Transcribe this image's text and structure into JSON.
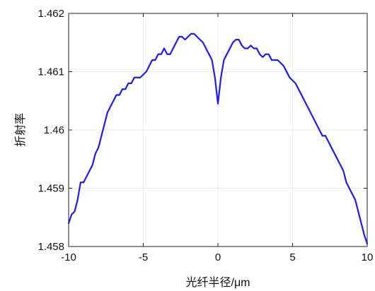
{
  "chart_data": {
    "type": "line",
    "title": "",
    "xlabel": "光纤半径/μm",
    "ylabel": "折射率",
    "xlim": [
      -10,
      10
    ],
    "ylim": [
      1.458,
      1.462
    ],
    "xticks": [
      -10,
      -5,
      0,
      5,
      10
    ],
    "xtick_labels": [
      "-10",
      "-5",
      "0",
      "5",
      "10"
    ],
    "yticks": [
      1.458,
      1.459,
      1.46,
      1.461,
      1.462
    ],
    "ytick_labels": [
      "1.458",
      "1.459",
      "1.46",
      "1.461",
      "1.462"
    ],
    "grid": true,
    "series": [
      {
        "color": "#1a1aff",
        "x": [
          -10,
          -9.8,
          -9.6,
          -9.4,
          -9.2,
          -9.0,
          -8.8,
          -8.6,
          -8.4,
          -8.2,
          -8.0,
          -7.8,
          -7.6,
          -7.4,
          -7.2,
          -7.0,
          -6.8,
          -6.6,
          -6.4,
          -6.2,
          -6.0,
          -5.8,
          -5.6,
          -5.4,
          -5.2,
          -5.0,
          -4.8,
          -4.6,
          -4.4,
          -4.2,
          -4.0,
          -3.8,
          -3.6,
          -3.4,
          -3.2,
          -3.0,
          -2.8,
          -2.6,
          -2.4,
          -2.2,
          -2.0,
          -1.8,
          -1.6,
          -1.4,
          -1.2,
          -1.0,
          -0.8,
          -0.6,
          -0.4,
          -0.2,
          0.0,
          0.2,
          0.4,
          0.6,
          0.8,
          1.0,
          1.2,
          1.4,
          1.6,
          1.8,
          2.0,
          2.2,
          2.4,
          2.6,
          2.8,
          3.0,
          3.2,
          3.4,
          3.6,
          3.8,
          4.0,
          4.2,
          4.4,
          4.6,
          4.8,
          5.0,
          5.2,
          5.4,
          5.6,
          5.8,
          6.0,
          6.2,
          6.4,
          6.6,
          6.8,
          7.0,
          7.2,
          7.4,
          7.6,
          7.8,
          8.0,
          8.2,
          8.4,
          8.6,
          8.8,
          9.0,
          9.2,
          9.4,
          9.6,
          9.8,
          10.0
        ],
        "y": [
          1.4584,
          1.45855,
          1.4586,
          1.4588,
          1.4591,
          1.4591,
          1.4592,
          1.4593,
          1.4594,
          1.4596,
          1.4597,
          1.4599,
          1.4601,
          1.4603,
          1.4604,
          1.4605,
          1.4606,
          1.4606,
          1.4607,
          1.4607,
          1.4608,
          1.4608,
          1.4609,
          1.4609,
          1.4609,
          1.46095,
          1.461,
          1.4611,
          1.4612,
          1.4612,
          1.4613,
          1.4613,
          1.4614,
          1.4613,
          1.4613,
          1.4614,
          1.4615,
          1.4616,
          1.4616,
          1.46155,
          1.4616,
          1.46165,
          1.46165,
          1.4616,
          1.46155,
          1.4615,
          1.4614,
          1.4613,
          1.4612,
          1.4609,
          1.46045,
          1.4609,
          1.4612,
          1.4613,
          1.4614,
          1.4615,
          1.46155,
          1.46155,
          1.46145,
          1.4614,
          1.4614,
          1.46145,
          1.4614,
          1.4614,
          1.4613,
          1.46125,
          1.4613,
          1.4613,
          1.4612,
          1.4612,
          1.4612,
          1.46115,
          1.4611,
          1.461,
          1.4609,
          1.46085,
          1.4608,
          1.4607,
          1.4606,
          1.4605,
          1.4604,
          1.4603,
          1.4602,
          1.4601,
          1.46,
          1.4599,
          1.4599,
          1.4598,
          1.4597,
          1.4596,
          1.4595,
          1.4594,
          1.4593,
          1.4591,
          1.459,
          1.4589,
          1.4588,
          1.4586,
          1.4584,
          1.4582,
          1.45805
        ]
      }
    ]
  }
}
